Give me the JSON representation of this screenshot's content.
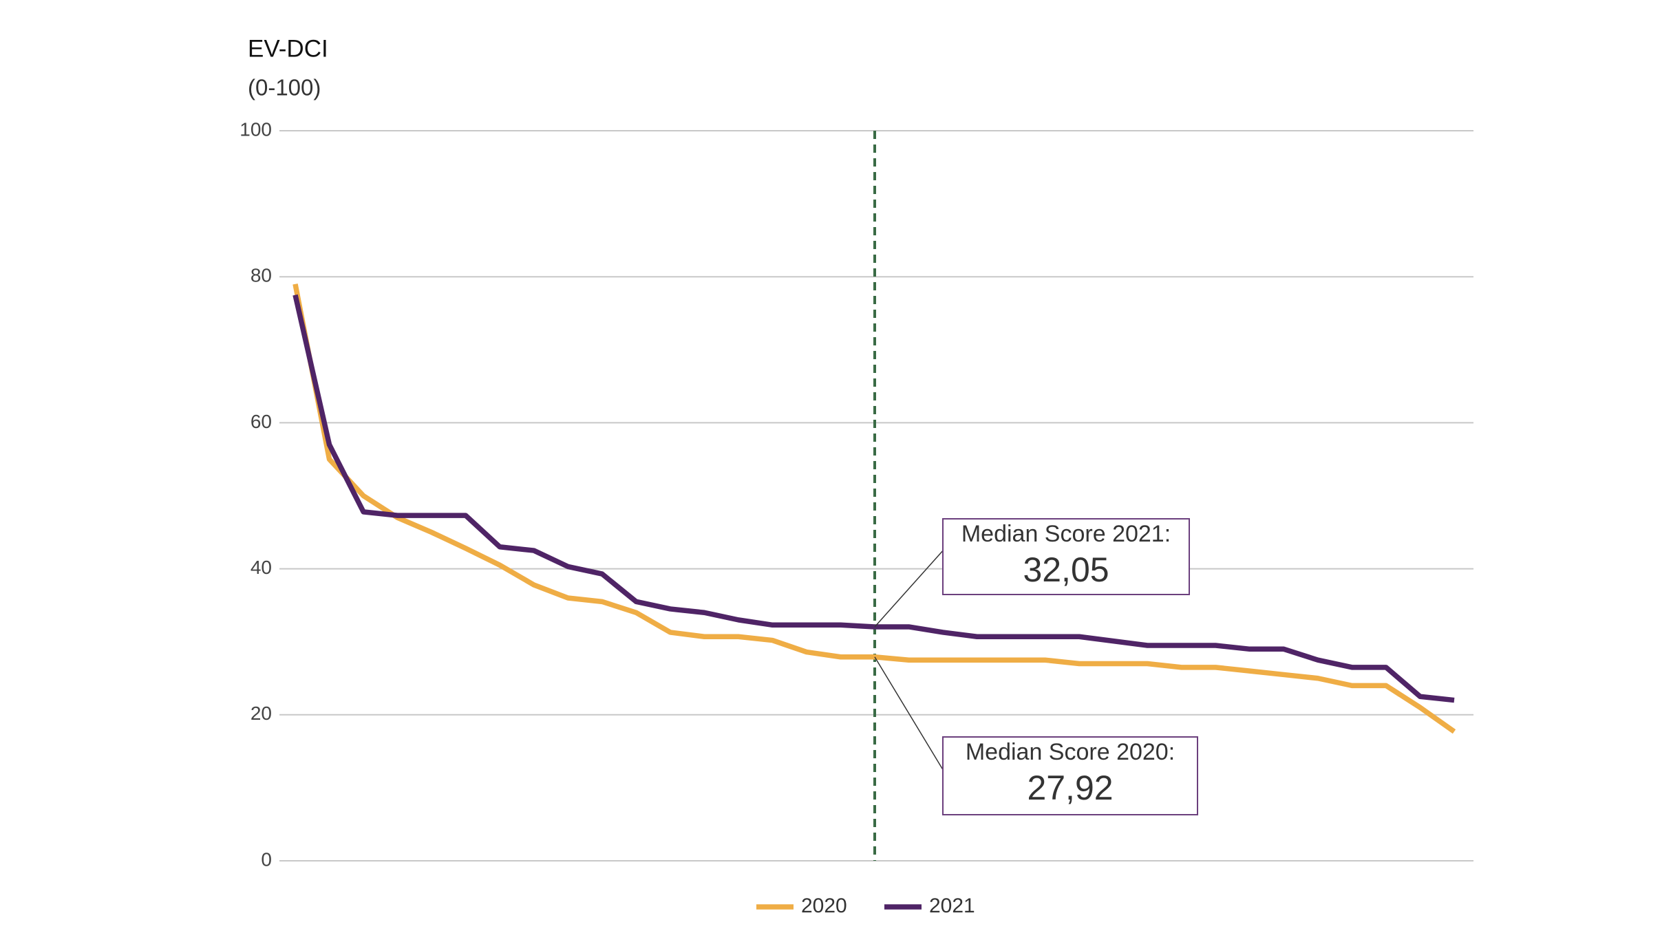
{
  "chart_data": {
    "type": "line",
    "ylabel": "EV-DCI",
    "ylabel_unit": "(0-100)",
    "ylim": [
      0,
      100
    ],
    "yticks": [
      0,
      20,
      40,
      60,
      80,
      100
    ],
    "grid": true,
    "legend": "bottom",
    "median_line_color": "#3a6b45",
    "series": [
      {
        "name": "2020",
        "color": "#efad45",
        "values": [
          79,
          55,
          50,
          47,
          45,
          42.8,
          40.5,
          37.8,
          36,
          35.5,
          34,
          31.3,
          30.7,
          30.7,
          30.2,
          28.6,
          27.92,
          27.92,
          27.5,
          27.5,
          27.5,
          27.5,
          27.5,
          27,
          27,
          27,
          26.5,
          26.5,
          26,
          25.5,
          25,
          24,
          24,
          21,
          17.7
        ]
      },
      {
        "name": "2021",
        "color": "#4f2466",
        "values": [
          77.5,
          57,
          47.8,
          47.3,
          47.3,
          47.3,
          43,
          42.5,
          40.3,
          39.3,
          35.5,
          34.5,
          34,
          33,
          32.3,
          32.3,
          32.3,
          32.05,
          32.05,
          31.3,
          30.7,
          30.7,
          30.7,
          30.7,
          30.1,
          29.5,
          29.5,
          29.5,
          29,
          29,
          27.5,
          26.5,
          26.5,
          22.5,
          22
        ]
      }
    ],
    "annotations": [
      {
        "text": "Median Score 2021:",
        "value": 32.05,
        "value_label": "32,05"
      },
      {
        "text": "Median Score 2020:",
        "value": 27.92,
        "value_label": "27,92"
      }
    ]
  }
}
